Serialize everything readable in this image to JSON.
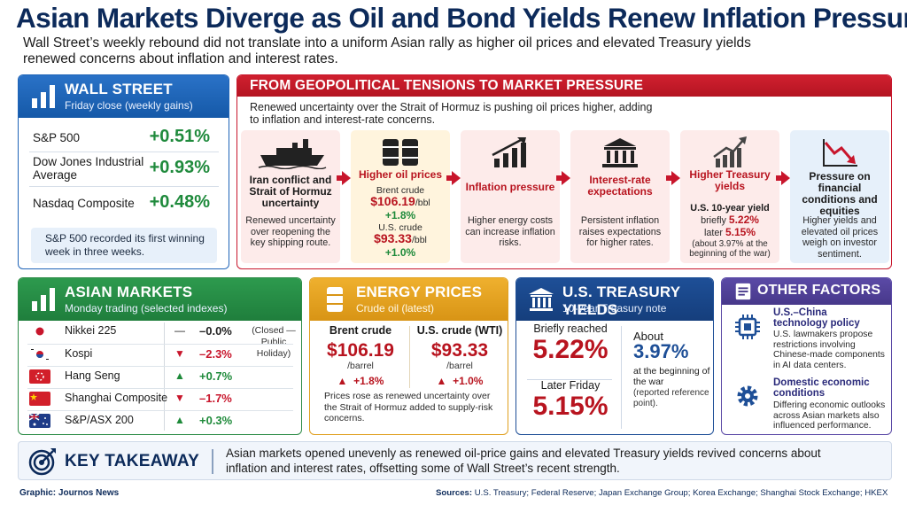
{
  "headline": "Asian Markets Diverge as Oil and Bond Yields Renew Inflation Pressure",
  "deck": "Wall Street’s weekly rebound did not translate into a uniform Asian rally as higher oil prices and elevated Treasury yields renewed concerns about inflation and interest rates.",
  "wall_street": {
    "title": "WALL STREET",
    "subtitle": "Friday close (weekly gains)",
    "icon": "bar-chart-icon",
    "rows": [
      {
        "name": "S&P 500",
        "value": "+0.51%"
      },
      {
        "name": "Dow Jones Industrial Average",
        "value": "+0.93%"
      },
      {
        "name": "Nasdaq Composite",
        "value": "+0.48%"
      }
    ],
    "note": "S&P 500 recorded its first winning week in three weeks."
  },
  "flow": {
    "title": "FROM GEOPOLITICAL TENSIONS TO MARKET PRESSURE",
    "intro": "Renewed uncertainty over the Strait of Hormuz is pushing oil prices higher, adding to inflation and interest-rate concerns.",
    "steps": [
      {
        "title": "Iran conflict and Strait of Hormuz uncertainty",
        "body": "Renewed uncertainty over reopening the key shipping route.",
        "icon": "ship-icon"
      },
      {
        "title": "Higher oil prices",
        "brent_label": "Brent crude",
        "brent_value": "$106.19",
        "brent_unit": "/bbl",
        "brent_change": "+1.8%",
        "wti_label": "U.S. crude",
        "wti_value": "$93.33",
        "wti_unit": "/bbl",
        "wti_change": "+1.0%",
        "icon": "oil-barrels-icon"
      },
      {
        "title": "Inflation pressure",
        "body": "Higher energy costs can increase inflation risks.",
        "icon": "rising-bars-icon"
      },
      {
        "title": "Interest-rate expectations",
        "body": "Persistent inflation raises expectations for higher rates.",
        "icon": "bank-icon"
      },
      {
        "title": "Higher Treasury yields",
        "line1": "U.S. 10-year yield",
        "briefly": "briefly",
        "briefly_value": "5.22%",
        "later": "later",
        "later_value": "5.15%",
        "note": "(about 3.97% at the beginning of the war)",
        "icon": "rising-chart-icon"
      },
      {
        "title": "Pressure on financial conditions and equities",
        "body": "Higher yields and elevated oil prices weigh on investor sentiment.",
        "icon": "falling-chart-icon"
      }
    ]
  },
  "asian_markets": {
    "title": "ASIAN MARKETS",
    "subtitle": "Monday trading (selected indexes)",
    "icon": "bar-chart-icon",
    "rows": [
      {
        "name": "Nikkei 225",
        "symbol": "—",
        "change": "–0.0%",
        "direction": "flat",
        "flag": "japan-flag"
      },
      {
        "name": "Kospi",
        "symbol": "▼",
        "change": "–2.3%",
        "direction": "down",
        "flag": "korea-flag"
      },
      {
        "name": "Hang Seng",
        "symbol": "▲",
        "change": "+0.7%",
        "direction": "up",
        "flag": "hong-kong-flag"
      },
      {
        "name": "Shanghai Composite",
        "symbol": "▼",
        "change": "–1.7%",
        "direction": "down",
        "flag": "china-flag"
      },
      {
        "name": "S&P/ASX 200",
        "symbol": "▲",
        "change": "+0.3%",
        "direction": "up",
        "flag": "australia-flag"
      }
    ],
    "nikkei_note": "(Closed — Public Holiday)"
  },
  "energy": {
    "title": "ENERGY PRICES",
    "subtitle": "Crude oil (latest)",
    "icon": "oil-barrel-icon",
    "brent": {
      "label": "Brent crude",
      "value": "$106.19",
      "unit": "/barrel",
      "change": "+1.8%"
    },
    "wti": {
      "label": "U.S. crude (WTI)",
      "value": "$93.33",
      "unit": "/barrel",
      "change": "+1.0%"
    },
    "note": "Prices rose as renewed uncertainty over the Strait of Hormuz added to supply-risk concerns."
  },
  "treasury": {
    "title": "U.S. TREASURY YIELDS",
    "subtitle": "10-year Treasury note",
    "icon": "bank-icon",
    "briefly_label": "Briefly reached",
    "briefly_value": "5.22%",
    "later_label": "Later Friday",
    "later_value": "5.15%",
    "about_label": "About",
    "about_value": "3.97%",
    "about_note": "at the beginning of the war",
    "about_ref": "(reported reference point)."
  },
  "other_factors": {
    "title": "OTHER FACTORS",
    "icon": "document-icon",
    "items": [
      {
        "title": "U.S.–China technology policy",
        "body": "U.S. lawmakers propose restrictions involving Chinese-made components in AI data centers.",
        "icon": "chip-icon"
      },
      {
        "title": "Domestic economic conditions",
        "body": "Differing economic outlooks across Asian markets also influenced performance.",
        "icon": "gear-icon"
      }
    ]
  },
  "takeaway": {
    "title": "KEY TAKEAWAY",
    "text": "Asian markets opened unevenly as renewed oil-price gains and elevated Treasury yields revived concerns about inflation and interest rates, offsetting some of Wall Street’s recent strength.",
    "icon": "target-icon"
  },
  "footer": {
    "graphic": "Graphic:  Journos News",
    "sources_label": "Sources:",
    "sources": "U.S. Treasury; Federal Reserve; Japan Exchange Group; Korea Exchange; Shanghai Stock Exchange; HKEX"
  },
  "colors": {
    "navy": "#0c2a5a",
    "red": "#c8162c",
    "green": "#1f8a3c",
    "blue": "#1f64b8",
    "gold": "#e0a020",
    "purple": "#5b4aa6"
  }
}
